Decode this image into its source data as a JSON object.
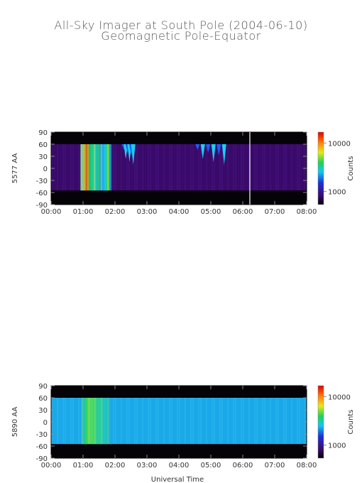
{
  "title": "All-Sky Imager at South Pole (2004-06-10)",
  "subtitle": "Geomagnetic Pole-Equator",
  "xlabel": "Universal Time",
  "colorbar_label": "Counts",
  "chart_data": [
    {
      "type": "heatmap",
      "ylabel": "5577 AA",
      "x_ticks": [
        "00:00",
        "01:00",
        "02:00",
        "03:00",
        "04:00",
        "05:00",
        "06:00",
        "07:00",
        "08:00"
      ],
      "y_ticks": [
        90,
        60,
        30,
        0,
        -30,
        -60,
        -90
      ],
      "xlim_hours": [
        0,
        8
      ],
      "ylim": [
        -90,
        90
      ],
      "data_ylim": [
        -55,
        60
      ],
      "colorbar_ticks": [
        "10000",
        "1000"
      ],
      "colorbar_scale": "log",
      "background": "#3a0a6a",
      "bursts": [
        {
          "start_h": 0.92,
          "end_h": 1.9,
          "level": "high"
        },
        {
          "start_h": 2.25,
          "end_h": 2.6,
          "level": "medium"
        },
        {
          "start_h": 4.5,
          "end_h": 5.5,
          "level": "medium"
        }
      ]
    },
    {
      "type": "heatmap",
      "ylabel": "5890 AA",
      "x_ticks": [
        "00:00",
        "01:00",
        "02:00",
        "03:00",
        "04:00",
        "05:00",
        "06:00",
        "07:00",
        "08:00"
      ],
      "y_ticks": [
        90,
        60,
        30,
        0,
        -30,
        -60,
        -90
      ],
      "xlim_hours": [
        0,
        8
      ],
      "ylim": [
        -90,
        90
      ],
      "data_ylim": [
        -55,
        60
      ],
      "colorbar_ticks": [
        "10000",
        "1000"
      ],
      "colorbar_scale": "log",
      "background": "#1aa8e8",
      "bursts": [
        {
          "start_h": 0.95,
          "end_h": 1.9,
          "level": "low"
        }
      ]
    }
  ]
}
